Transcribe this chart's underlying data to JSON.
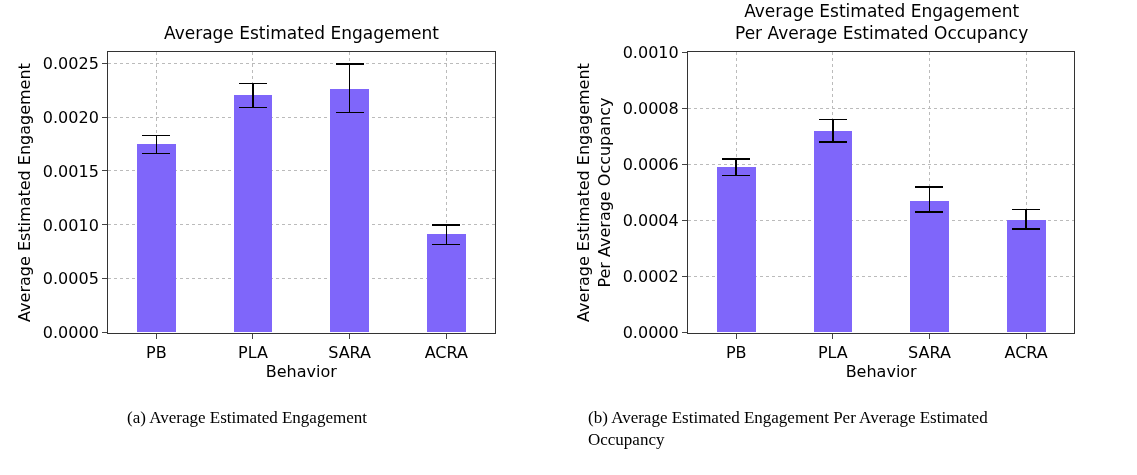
{
  "chart_data": [
    {
      "type": "bar",
      "title": "Average Estimated Engagement",
      "xlabel": "Behavior",
      "ylabel": "Average Estimated Engagement",
      "categories": [
        "PB",
        "PLA",
        "SARA",
        "ACRA"
      ],
      "values": [
        0.00175,
        0.0022,
        0.00226,
        0.00091
      ],
      "errors": [
        [
          0.00166,
          0.00183
        ],
        [
          0.00209,
          0.00231
        ],
        [
          0.00204,
          0.00249
        ],
        [
          0.00082,
          0.001
        ]
      ],
      "color": "#7f66fa",
      "ylim": [
        0,
        0.0026
      ],
      "yticks": [
        {
          "value": 0,
          "label": "0.0000"
        },
        {
          "value": 0.0005,
          "label": "0.0005"
        },
        {
          "value": 0.001,
          "label": "0.0010"
        },
        {
          "value": 0.0015,
          "label": "0.0015"
        },
        {
          "value": 0.002,
          "label": "0.0020"
        },
        {
          "value": 0.0025,
          "label": "0.0025"
        }
      ],
      "grid": true,
      "annotations": [
        "(a) Average Estimated Engagement"
      ]
    },
    {
      "type": "bar",
      "title": "Average Estimated Engagement\nPer Average Estimated Occupancy",
      "xlabel": "Behavior",
      "ylabel": "Average Estimated Engagement\nPer Average Occupancy",
      "categories": [
        "PB",
        "PLA",
        "SARA",
        "ACRA"
      ],
      "values": [
        0.00059,
        0.00072,
        0.00047,
        0.0004
      ],
      "errors": [
        [
          0.00056,
          0.00062
        ],
        [
          0.00068,
          0.00076
        ],
        [
          0.00043,
          0.00052
        ],
        [
          0.00037,
          0.00044
        ]
      ],
      "color": "#7f66fa",
      "ylim": [
        0,
        0.001
      ],
      "yticks": [
        {
          "value": 0,
          "label": "0.0000"
        },
        {
          "value": 0.0002,
          "label": "0.0002"
        },
        {
          "value": 0.0004,
          "label": "0.0004"
        },
        {
          "value": 0.0006,
          "label": "0.0006"
        },
        {
          "value": 0.0008,
          "label": "0.0008"
        },
        {
          "value": 0.001,
          "label": "0.0010"
        }
      ],
      "grid": true,
      "annotations": [
        "(b) Average Estimated Engagement Per Average Estimated Occupancy"
      ]
    }
  ]
}
